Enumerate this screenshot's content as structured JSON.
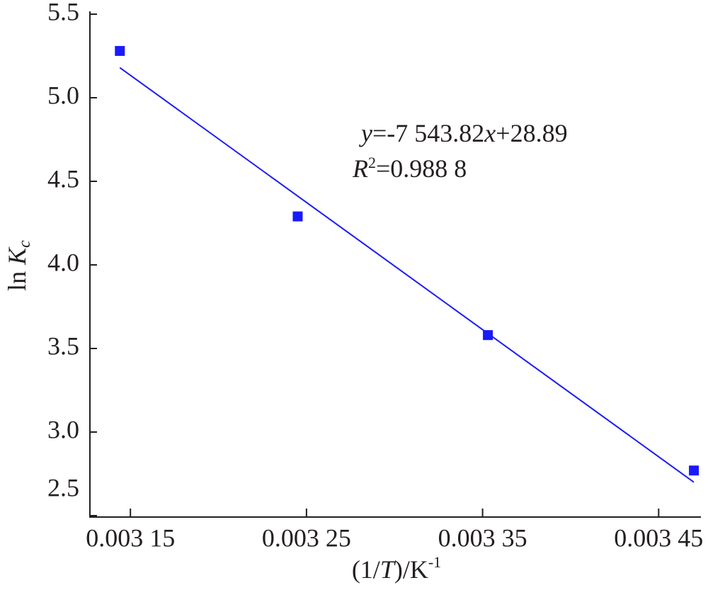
{
  "chart_data": {
    "type": "scatter",
    "x_label": [
      "(1/",
      "T",
      ")/K",
      "-1"
    ],
    "y_label": [
      "ln ",
      "K",
      "c"
    ],
    "equation": [
      "y",
      "=-7 543.82",
      "x",
      "+28.89"
    ],
    "r_squared": [
      "R",
      "2",
      "=0.988 8"
    ],
    "xlim": [
      0.003127,
      0.003474
    ],
    "ylim": [
      2.5,
      5.5
    ],
    "xticks": [
      {
        "value": 0.00315,
        "label": "0.003 15"
      },
      {
        "value": 0.00325,
        "label": "0.003 25"
      },
      {
        "value": 0.00335,
        "label": "0.003 35"
      },
      {
        "value": 0.00345,
        "label": "0.003 45"
      }
    ],
    "yticks": [
      {
        "value": 2.5,
        "label": "2.5"
      },
      {
        "value": 3.0,
        "label": "3.0"
      },
      {
        "value": 3.5,
        "label": "3.5"
      },
      {
        "value": 4.0,
        "label": "4.0"
      },
      {
        "value": 4.5,
        "label": "4.5"
      },
      {
        "value": 5.0,
        "label": "5.0"
      },
      {
        "value": 5.5,
        "label": "5.5"
      }
    ],
    "series": [
      {
        "type": "scatter",
        "color": "#1a1aff",
        "x": [
          0.003144,
          0.003245,
          0.003353,
          0.00347
        ],
        "values": [
          5.28,
          4.29,
          3.58,
          2.77
        ]
      },
      {
        "type": "line",
        "color": "#1a1aff",
        "x": [
          0.003144,
          0.00347
        ],
        "values": [
          5.18,
          2.7
        ]
      }
    ]
  }
}
